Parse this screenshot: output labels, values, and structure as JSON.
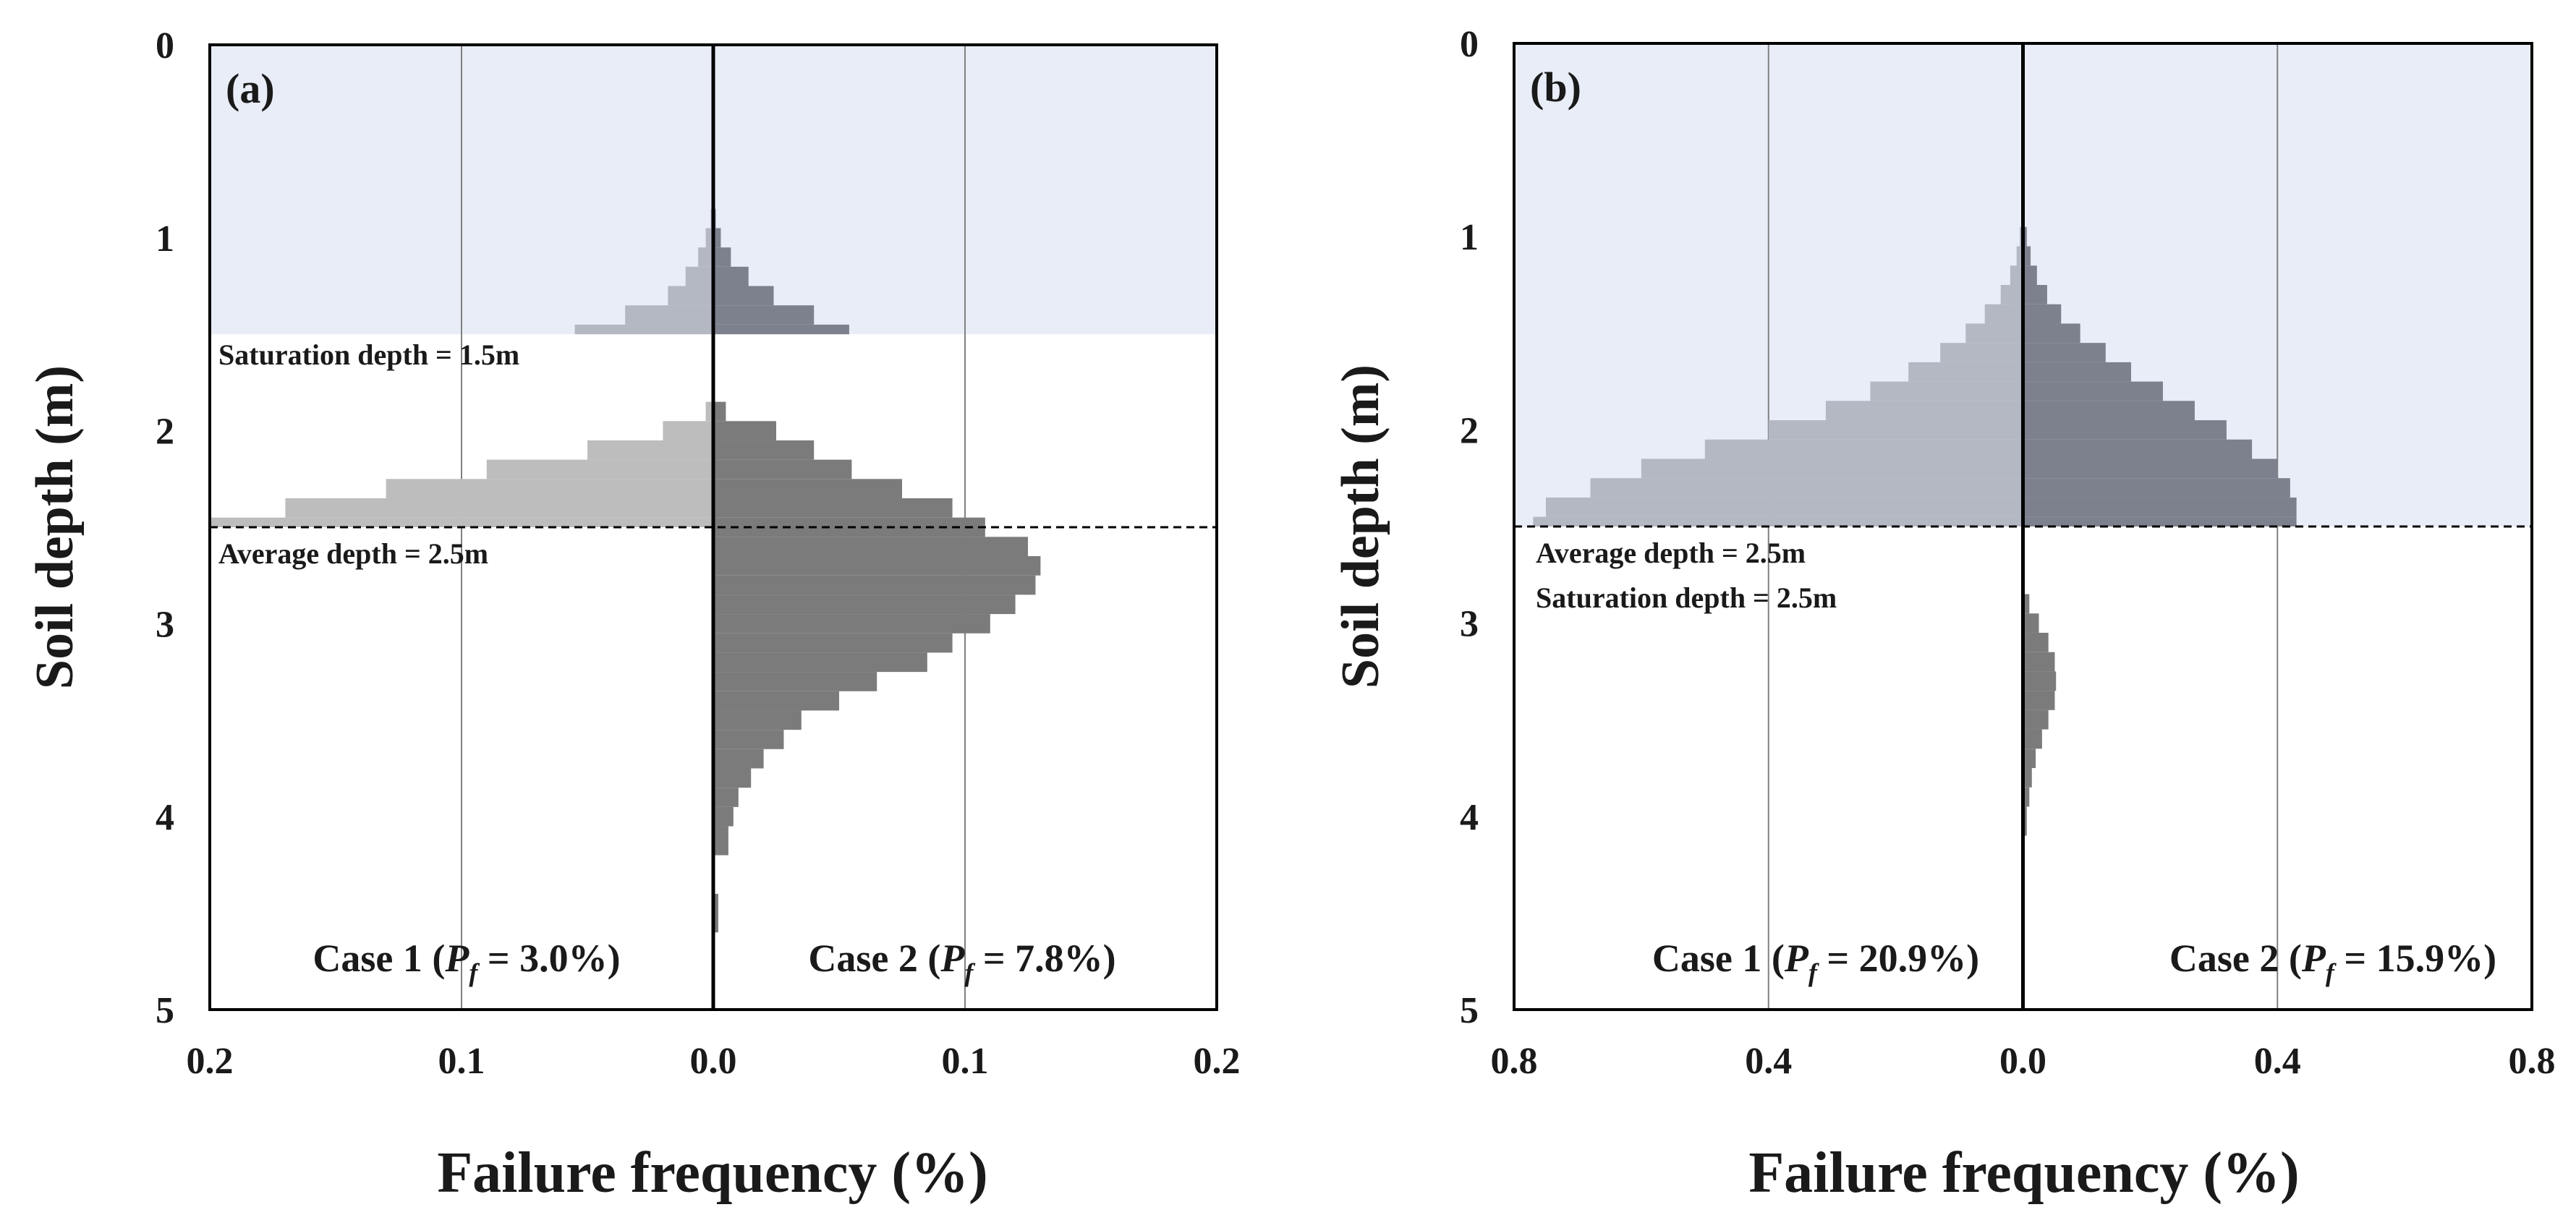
{
  "chart_data": [
    {
      "panel_label": "(a)",
      "type": "bar",
      "orientation": "horizontal-mirrored",
      "ylabel": "Soil depth (m)",
      "xlabel": "Failure frequency (%)",
      "ylim": [
        0,
        5
      ],
      "y_ticks": [
        "0",
        "1",
        "2",
        "3",
        "4",
        "5"
      ],
      "xlim_each_side": 0.2,
      "x_ticks": [
        "0.2",
        "0.1",
        "0.0",
        "0.1",
        "0.2"
      ],
      "saturated_zone": {
        "top": 0,
        "bottom": 1.5
      },
      "saturation_label": "Saturation depth = 1.5m",
      "average_depth": 2.5,
      "average_label": "Average depth = 2.5m",
      "series": [
        {
          "name": "Case 1",
          "label_prefix": "Case 1 (",
          "label_suffix": " = 3.0%)",
          "side": "left",
          "profile": [
            [
              0.85,
              0.0
            ],
            [
              0.95,
              0.001
            ],
            [
              1.05,
              0.003
            ],
            [
              1.15,
              0.006
            ],
            [
              1.25,
              0.011
            ],
            [
              1.35,
              0.018
            ],
            [
              1.45,
              0.035
            ],
            [
              1.5,
              0.055
            ],
            [
              1.85,
              0.0
            ],
            [
              1.95,
              0.003
            ],
            [
              2.05,
              0.02
            ],
            [
              2.15,
              0.05
            ],
            [
              2.25,
              0.09
            ],
            [
              2.35,
              0.13
            ],
            [
              2.45,
              0.17
            ],
            [
              2.5,
              0.2
            ]
          ]
        },
        {
          "name": "Case 2",
          "label_prefix": "Case 2 (",
          "label_suffix": " = 7.8%)",
          "side": "right",
          "profile": [
            [
              0.85,
              0.0
            ],
            [
              0.95,
              0.001
            ],
            [
              1.05,
              0.003
            ],
            [
              1.15,
              0.007
            ],
            [
              1.25,
              0.014
            ],
            [
              1.35,
              0.024
            ],
            [
              1.45,
              0.04
            ],
            [
              1.5,
              0.054
            ],
            [
              1.85,
              0.0
            ],
            [
              1.95,
              0.005
            ],
            [
              2.05,
              0.025
            ],
            [
              2.15,
              0.04
            ],
            [
              2.25,
              0.055
            ],
            [
              2.35,
              0.075
            ],
            [
              2.45,
              0.095
            ],
            [
              2.55,
              0.108
            ],
            [
              2.65,
              0.125
            ],
            [
              2.75,
              0.13
            ],
            [
              2.85,
              0.128
            ],
            [
              2.95,
              0.12
            ],
            [
              3.05,
              0.11
            ],
            [
              3.15,
              0.095
            ],
            [
              3.25,
              0.085
            ],
            [
              3.35,
              0.065
            ],
            [
              3.45,
              0.05
            ],
            [
              3.55,
              0.035
            ],
            [
              3.65,
              0.028
            ],
            [
              3.75,
              0.02
            ],
            [
              3.85,
              0.015
            ],
            [
              3.95,
              0.01
            ],
            [
              4.05,
              0.008
            ],
            [
              4.2,
              0.006
            ],
            [
              4.4,
              0.004
            ],
            [
              4.6,
              0.002
            ],
            [
              4.8,
              0.001
            ],
            [
              5.0,
              0.0
            ]
          ]
        }
      ]
    },
    {
      "panel_label": "(b)",
      "type": "bar",
      "orientation": "horizontal-mirrored",
      "ylabel": "Soil depth (m)",
      "xlabel": "Failure frequency (%)",
      "ylim": [
        0,
        5
      ],
      "y_ticks": [
        "0",
        "1",
        "2",
        "3",
        "4",
        "5"
      ],
      "xlim_each_side": 0.8,
      "x_ticks": [
        "0.8",
        "0.4",
        "0.0",
        "0.4",
        "0.8"
      ],
      "saturated_zone": {
        "top": 0,
        "bottom": 2.5
      },
      "average_depth": 2.5,
      "average_label": "Average depth = 2.5m",
      "saturation_label": "Saturation depth = 2.5m",
      "series": [
        {
          "name": "Case 1",
          "label_prefix": "Case 1 (",
          "label_suffix": " = 20.9%)",
          "side": "left",
          "profile": [
            [
              0.85,
              0.0
            ],
            [
              0.95,
              0.002
            ],
            [
              1.05,
              0.005
            ],
            [
              1.15,
              0.01
            ],
            [
              1.25,
              0.02
            ],
            [
              1.35,
              0.035
            ],
            [
              1.45,
              0.06
            ],
            [
              1.55,
              0.09
            ],
            [
              1.65,
              0.13
            ],
            [
              1.75,
              0.18
            ],
            [
              1.85,
              0.24
            ],
            [
              1.95,
              0.31
            ],
            [
              2.05,
              0.4
            ],
            [
              2.15,
              0.5
            ],
            [
              2.25,
              0.6
            ],
            [
              2.35,
              0.68
            ],
            [
              2.45,
              0.75
            ],
            [
              2.5,
              0.77
            ]
          ]
        },
        {
          "name": "Case 2",
          "label_prefix": "Case 2 (",
          "label_suffix": " = 15.9%)",
          "side": "right",
          "profile": [
            [
              0.85,
              0.0
            ],
            [
              0.95,
              0.002
            ],
            [
              1.05,
              0.006
            ],
            [
              1.15,
              0.012
            ],
            [
              1.25,
              0.022
            ],
            [
              1.35,
              0.038
            ],
            [
              1.45,
              0.06
            ],
            [
              1.55,
              0.09
            ],
            [
              1.65,
              0.13
            ],
            [
              1.75,
              0.17
            ],
            [
              1.85,
              0.22
            ],
            [
              1.95,
              0.27
            ],
            [
              2.05,
              0.32
            ],
            [
              2.15,
              0.36
            ],
            [
              2.25,
              0.4
            ],
            [
              2.35,
              0.42
            ],
            [
              2.45,
              0.43
            ],
            [
              2.5,
              0.43
            ],
            [
              2.85,
              0.0
            ],
            [
              2.95,
              0.01
            ],
            [
              3.05,
              0.025
            ],
            [
              3.15,
              0.04
            ],
            [
              3.25,
              0.05
            ],
            [
              3.35,
              0.052
            ],
            [
              3.45,
              0.05
            ],
            [
              3.55,
              0.04
            ],
            [
              3.65,
              0.03
            ],
            [
              3.75,
              0.02
            ],
            [
              3.85,
              0.014
            ],
            [
              3.95,
              0.01
            ],
            [
              4.1,
              0.006
            ],
            [
              4.3,
              0.004
            ],
            [
              4.5,
              0.002
            ],
            [
              4.8,
              0.001
            ],
            [
              5.0,
              0.0
            ]
          ]
        }
      ]
    }
  ],
  "pf_symbol": "P",
  "pf_subscript": "f",
  "colors": {
    "saturated_bg": "#e9edf8",
    "case1_upper": "#b3b8c3",
    "case2_upper": "#7d818d",
    "case1_lower": "#bdbdbd",
    "case2_lower": "#7b7b7b",
    "axis": "#000000",
    "grid": "#808080"
  }
}
